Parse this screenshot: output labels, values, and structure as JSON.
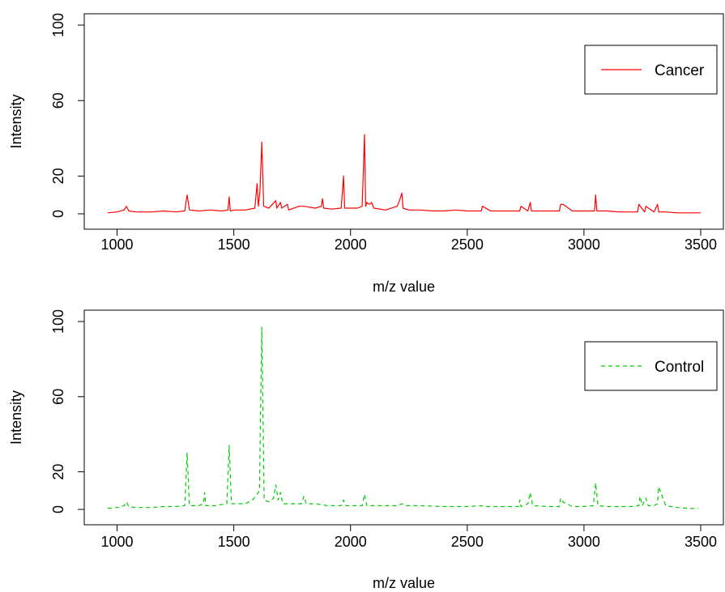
{
  "chart_data": [
    {
      "type": "line",
      "xlabel": "m/z value",
      "ylabel": "Intensity",
      "xlim": [
        960,
        3500
      ],
      "ylim": [
        0,
        100
      ],
      "x_ticks": [
        "1000",
        "1500",
        "2000",
        "2500",
        "3000",
        "3500"
      ],
      "y_ticks": [
        "0",
        "20",
        "60",
        "100"
      ],
      "legend": {
        "position": "top-right"
      },
      "series": [
        {
          "name": "Cancer",
          "color": "#ff0000",
          "line_style": "solid",
          "x": [
            960,
            1000,
            1030,
            1040,
            1050,
            1080,
            1150,
            1200,
            1250,
            1290,
            1300,
            1310,
            1350,
            1400,
            1450,
            1475,
            1480,
            1485,
            1500,
            1550,
            1590,
            1600,
            1605,
            1612,
            1620,
            1628,
            1650,
            1680,
            1684,
            1700,
            1705,
            1730,
            1735,
            1780,
            1800,
            1850,
            1875,
            1880,
            1885,
            1920,
            1960,
            1970,
            1975,
            2000,
            2030,
            2050,
            2060,
            2065,
            2070,
            2080,
            2090,
            2100,
            2150,
            2200,
            2210,
            2220,
            2225,
            2250,
            2300,
            2350,
            2400,
            2450,
            2500,
            2560,
            2565,
            2600,
            2650,
            2700,
            2725,
            2730,
            2760,
            2770,
            2775,
            2800,
            2850,
            2895,
            2900,
            2910,
            2950,
            3000,
            3045,
            3050,
            3055,
            3100,
            3150,
            3200,
            3230,
            3235,
            3260,
            3265,
            3300,
            3315,
            3320,
            3350,
            3400,
            3450,
            3500
          ],
          "y": [
            0.5,
            1,
            2,
            4,
            1.5,
            1,
            1,
            1.5,
            1,
            1.5,
            10,
            2,
            1.5,
            2,
            1.5,
            2,
            9,
            1.5,
            2,
            2,
            3,
            16,
            4,
            12,
            38,
            4,
            3,
            7,
            3,
            6,
            3,
            5,
            2,
            4,
            4,
            3,
            4,
            8,
            3,
            2.5,
            3,
            20,
            3,
            3,
            3,
            4,
            42,
            4,
            6,
            5,
            6,
            3,
            2,
            4,
            7,
            11,
            3,
            2,
            2,
            1.5,
            1.5,
            2,
            1.5,
            1.5,
            4,
            1.5,
            1.5,
            1.5,
            1.5,
            4,
            1.5,
            6,
            1.5,
            1.5,
            1.5,
            1.5,
            5,
            5,
            1.5,
            1.5,
            1.5,
            10,
            1.5,
            1.5,
            1,
            1,
            1,
            5,
            1,
            4,
            1,
            5,
            1,
            1,
            0.5,
            0.5,
            0.5
          ]
        }
      ]
    },
    {
      "type": "line",
      "xlabel": "m/z value",
      "ylabel": "Intensity",
      "xlim": [
        960,
        3500
      ],
      "ylim": [
        0,
        100
      ],
      "x_ticks": [
        "1000",
        "1500",
        "2000",
        "2500",
        "3000",
        "3500"
      ],
      "y_ticks": [
        "0",
        "20",
        "60",
        "100"
      ],
      "legend": {
        "position": "top-right"
      },
      "series": [
        {
          "name": "Control",
          "color": "#00cc00",
          "line_style": "dashed",
          "x": [
            960,
            1000,
            1030,
            1040,
            1050,
            1080,
            1150,
            1200,
            1250,
            1290,
            1300,
            1310,
            1350,
            1370,
            1375,
            1380,
            1420,
            1470,
            1480,
            1490,
            1520,
            1550,
            1580,
            1600,
            1610,
            1620,
            1630,
            1650,
            1670,
            1680,
            1690,
            1700,
            1710,
            1730,
            1750,
            1790,
            1800,
            1810,
            1850,
            1900,
            1960,
            1970,
            1980,
            2050,
            2060,
            2070,
            2100,
            2150,
            2200,
            2220,
            2240,
            2300,
            2400,
            2500,
            2560,
            2570,
            2650,
            2720,
            2725,
            2730,
            2760,
            2770,
            2780,
            2850,
            2895,
            2900,
            2910,
            2950,
            3000,
            3040,
            3050,
            3060,
            3100,
            3200,
            3235,
            3240,
            3250,
            3265,
            3275,
            3300,
            3315,
            3320,
            3350,
            3400,
            3450,
            3490
          ],
          "y": [
            0.5,
            1,
            2,
            4,
            1.5,
            1,
            1,
            1.5,
            1.5,
            2,
            30,
            2,
            2,
            3,
            9,
            2,
            2,
            3,
            34,
            3,
            3,
            3,
            5,
            8,
            10,
            97,
            5,
            4,
            6,
            13,
            5,
            9,
            3,
            3,
            3,
            3,
            7,
            3,
            3,
            2,
            2,
            5,
            2,
            2,
            8,
            2,
            2,
            2,
            2,
            3,
            2,
            2,
            1.5,
            1.5,
            2,
            1.5,
            1.5,
            1.5,
            5,
            1.5,
            3,
            9,
            2,
            1.5,
            1.5,
            6,
            4,
            1.5,
            1.5,
            2,
            14,
            2,
            1.5,
            1.5,
            2,
            7,
            2,
            6,
            2,
            2,
            3,
            12,
            2,
            1,
            0.5,
            0.5
          ]
        }
      ]
    }
  ]
}
